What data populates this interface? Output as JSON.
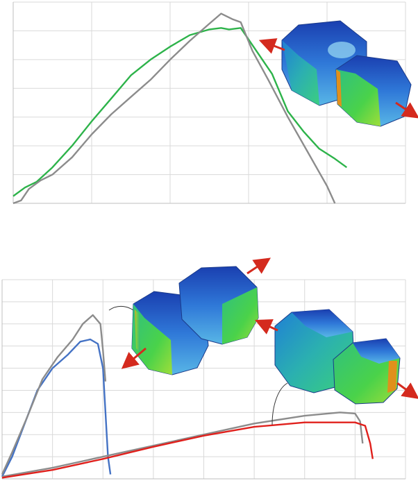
{
  "chart_data": [
    {
      "type": "line",
      "title": "",
      "xlabel": "",
      "ylabel": "",
      "grid": true,
      "xlim": [
        0,
        10
      ],
      "ylim": [
        0,
        7
      ],
      "series": [
        {
          "color": "#2db34a",
          "x": [
            0,
            0.3,
            0.6,
            1,
            1.5,
            2,
            2.5,
            3,
            3.5,
            4,
            4.5,
            5,
            5.3,
            5.5,
            5.8,
            6.2,
            6.6,
            7,
            7.4,
            7.8,
            8.2,
            8.5
          ],
          "y": [
            0.25,
            0.55,
            0.75,
            1.25,
            2.0,
            2.85,
            3.65,
            4.45,
            5.0,
            5.45,
            5.85,
            6.05,
            6.1,
            6.05,
            6.1,
            5.3,
            4.5,
            3.2,
            2.5,
            1.9,
            1.55,
            1.25
          ]
        },
        {
          "color": "#8c8c8c",
          "x": [
            0,
            0.2,
            0.4,
            0.7,
            1,
            1.5,
            2,
            2.5,
            3,
            3.5,
            4,
            4.5,
            5,
            5.3,
            5.6,
            5.8,
            6.1,
            6.5,
            7,
            7.5,
            8,
            8.2
          ],
          "y": [
            0,
            0.1,
            0.5,
            0.8,
            1.0,
            1.6,
            2.4,
            3.1,
            3.7,
            4.3,
            5.0,
            5.65,
            6.25,
            6.6,
            6.4,
            6.3,
            5.3,
            4.3,
            3.0,
            1.8,
            0.6,
            0
          ]
        }
      ]
    },
    {
      "type": "line",
      "title": "",
      "xlabel": "",
      "ylabel": "",
      "grid": true,
      "xlim": [
        0,
        8
      ],
      "ylim": [
        0,
        9
      ],
      "series": [
        {
          "color": "#4472c4",
          "x": [
            0,
            0.2,
            0.4,
            0.7,
            1.0,
            1.3,
            1.55,
            1.75,
            1.9,
            2.0,
            2.05,
            2.1,
            2.15
          ],
          "y": [
            0.1,
            1.0,
            2.2,
            4.0,
            5.0,
            5.6,
            6.2,
            6.3,
            6.1,
            5.0,
            3.0,
            1.0,
            0.2
          ]
        },
        {
          "color": "#8c8c8c",
          "x": [
            0,
            0.2,
            0.5,
            0.8,
            1.1,
            1.4,
            1.6,
            1.8,
            1.95,
            2.0,
            2.05
          ],
          "y": [
            0.2,
            1.2,
            2.8,
            4.5,
            5.5,
            6.3,
            7.0,
            7.4,
            7.0,
            5.8,
            4.4
          ]
        },
        {
          "color": "#8c8c8c",
          "x": [
            0,
            1,
            2,
            3,
            4,
            5,
            6,
            6.7,
            7.0,
            7.1,
            7.15
          ],
          "y": [
            0.1,
            0.5,
            1.0,
            1.5,
            2.0,
            2.5,
            2.85,
            3.0,
            2.95,
            2.6,
            1.6
          ]
        },
        {
          "color": "#e0201c",
          "x": [
            0,
            1,
            2,
            3,
            4,
            5,
            6,
            7,
            7.2,
            7.3,
            7.35
          ],
          "y": [
            0.05,
            0.4,
            0.9,
            1.45,
            1.95,
            2.35,
            2.55,
            2.55,
            2.4,
            1.6,
            0.9
          ]
        }
      ]
    }
  ]
}
